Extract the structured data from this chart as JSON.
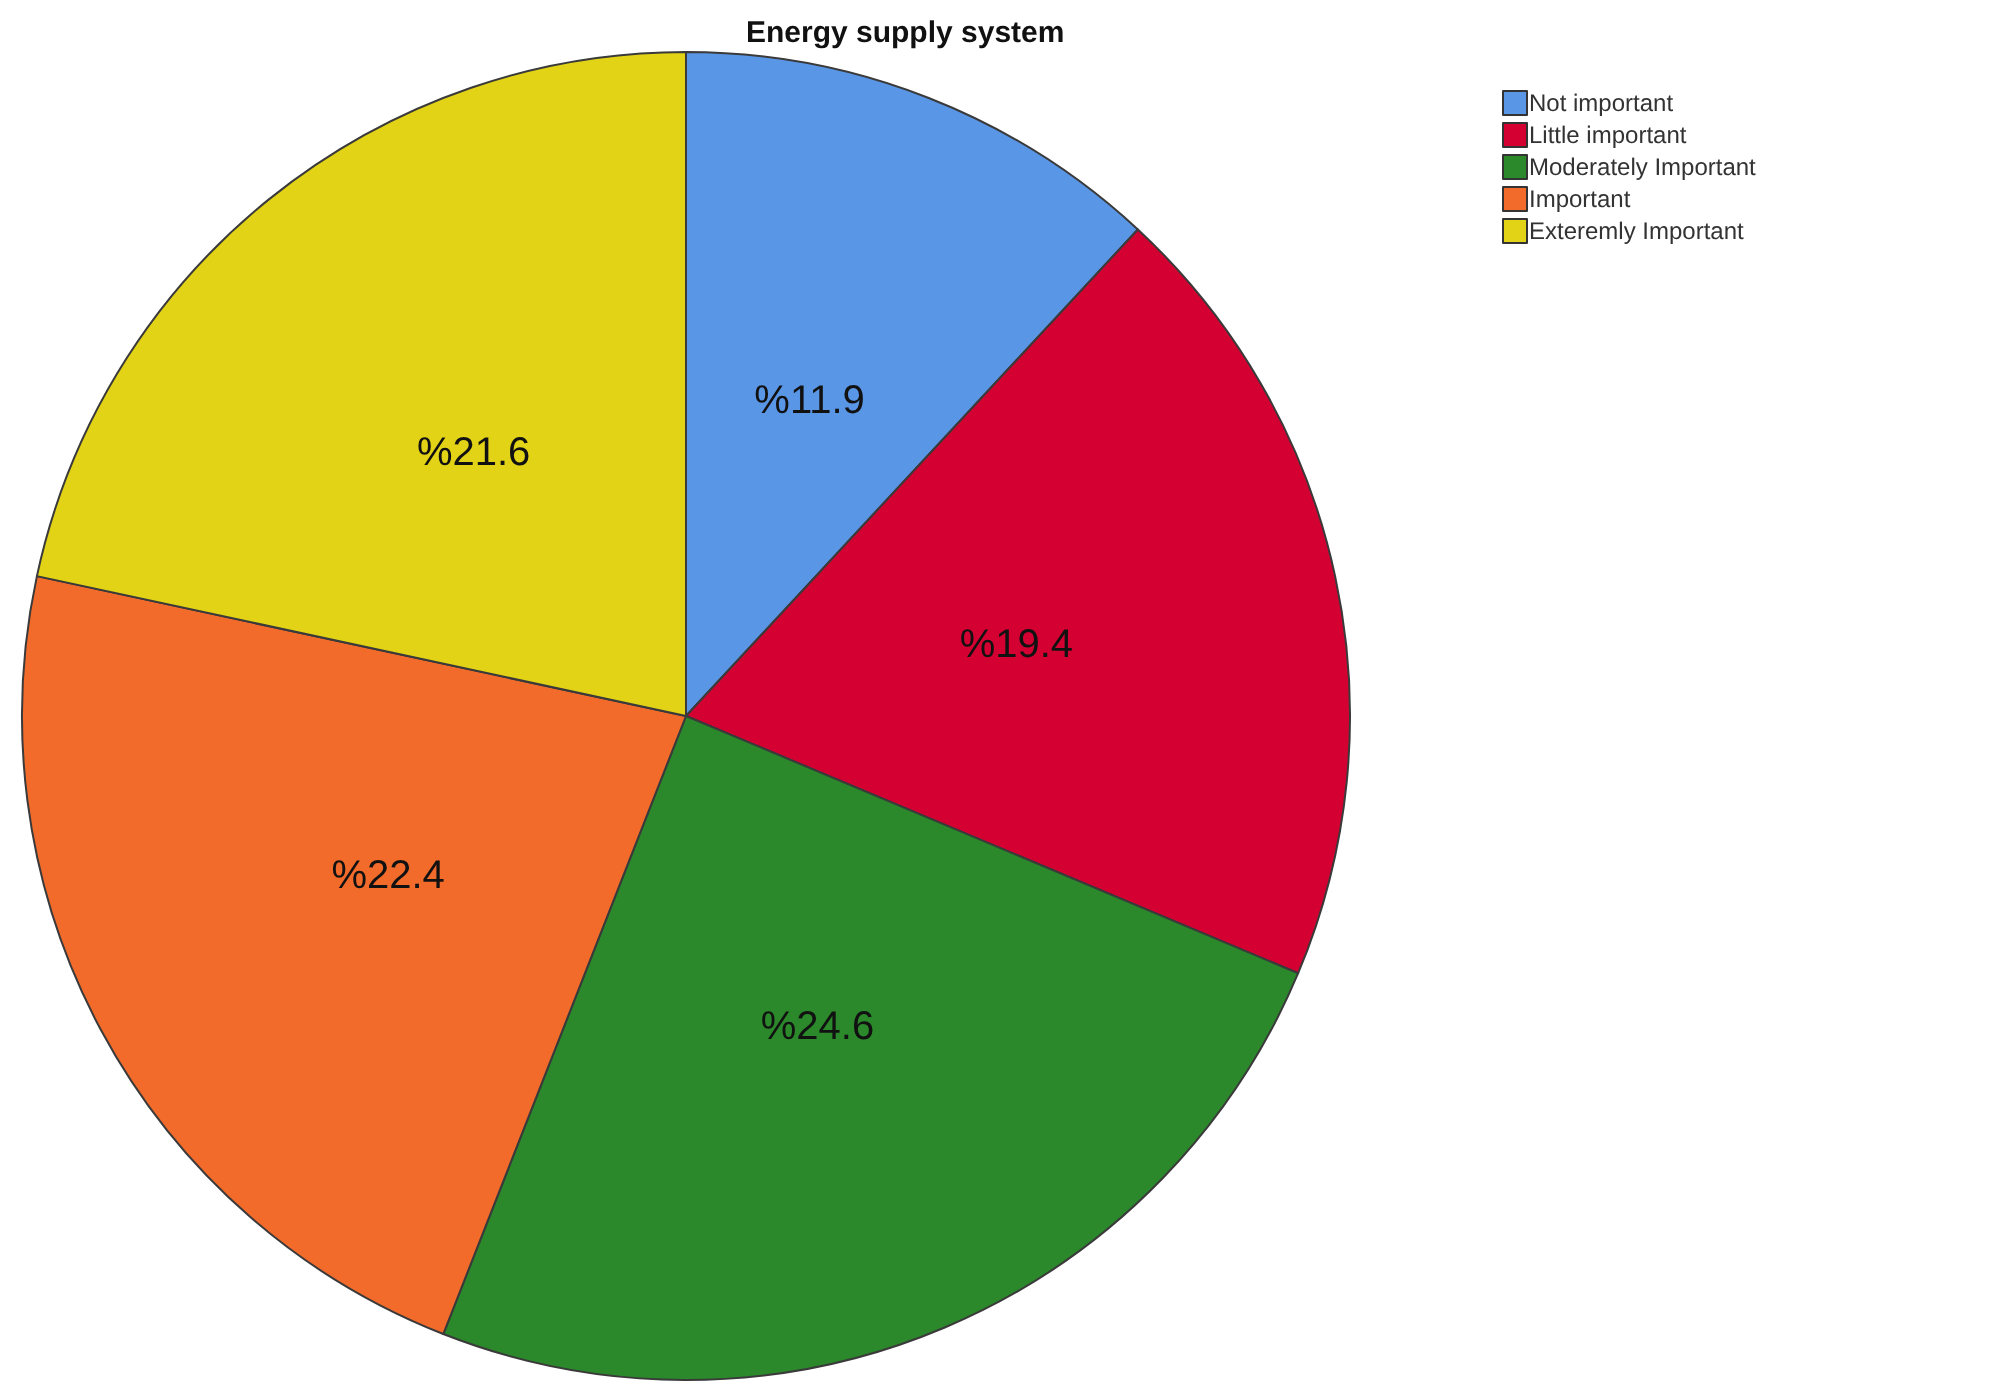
{
  "chart_data": {
    "type": "pie",
    "title": "Energy supply system",
    "categories": [
      "Not important",
      "Little important",
      "Moderately Important",
      "Important",
      "Exteremly Important"
    ],
    "values": [
      11.9,
      19.4,
      24.6,
      22.4,
      21.6
    ],
    "colors": [
      "#5a96e6",
      "#d40032",
      "#2b882b",
      "#f26b2b",
      "#e2d316"
    ],
    "value_labels": [
      "%11.9",
      "%19.4",
      "%24.6",
      "%22.4",
      "%21.6"
    ],
    "legend": "top right"
  }
}
